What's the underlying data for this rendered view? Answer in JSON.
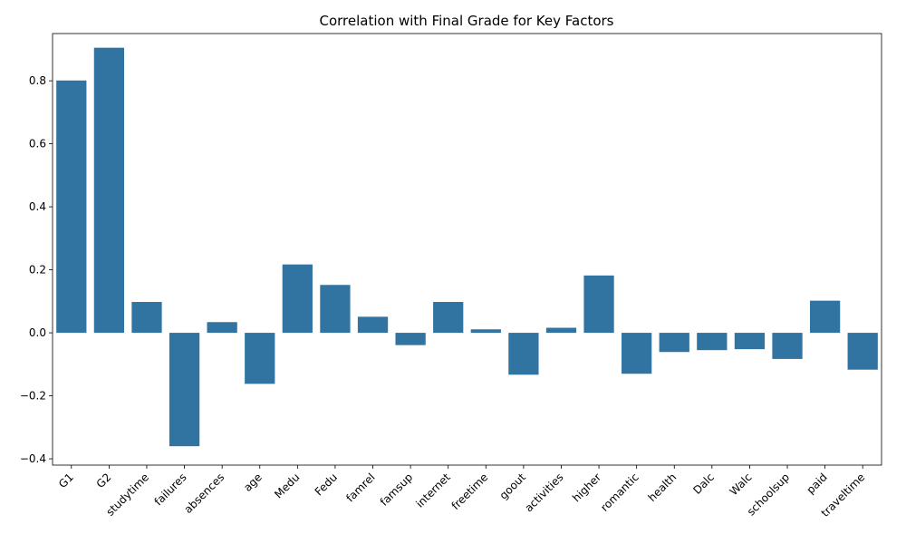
{
  "chart_data": {
    "type": "bar",
    "title": "Correlation with Final Grade for Key Factors",
    "xlabel": "",
    "ylabel": "",
    "categories": [
      "G1",
      "G2",
      "studytime",
      "failures",
      "absences",
      "age",
      "Medu",
      "Fedu",
      "famrel",
      "famsup",
      "internet",
      "freetime",
      "goout",
      "activities",
      "higher",
      "romantic",
      "health",
      "Dalc",
      "Walc",
      "schoolsup",
      "paid",
      "traveltime"
    ],
    "values": [
      0.801,
      0.905,
      0.098,
      -0.36,
      0.034,
      -0.162,
      0.217,
      0.152,
      0.051,
      -0.039,
      0.098,
      0.011,
      -0.133,
      0.016,
      0.182,
      -0.13,
      -0.061,
      -0.055,
      -0.052,
      -0.083,
      0.102,
      -0.117
    ],
    "ylim": [
      -0.42,
      0.95
    ],
    "yticks": [
      -0.4,
      -0.2,
      0.0,
      0.2,
      0.4,
      0.6,
      0.8
    ],
    "ytick_labels": [
      "−0.4",
      "−0.2",
      "0.0",
      "0.2",
      "0.4",
      "0.6",
      "0.8"
    ],
    "bar_color": "#3274a1",
    "grid": false,
    "legend": "none"
  }
}
